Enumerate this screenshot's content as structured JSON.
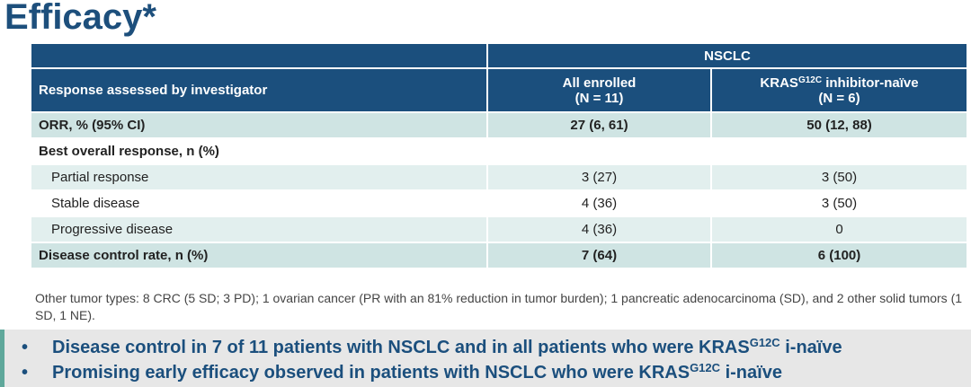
{
  "title": "Efficacy*",
  "table": {
    "group_header": "NSCLC",
    "header": {
      "label": "Response assessed by investigator",
      "columns": [
        {
          "title": "All enrolled",
          "n": "(N = 11)"
        },
        {
          "title": "KRAS",
          "title_sup": "G12C",
          "title_rest": " inhibitor-naïve",
          "n": "(N = 6)"
        }
      ]
    },
    "rows": [
      [
        "ORR, % (95% CI)",
        "27 (6, 61)",
        "50 (12, 88)"
      ],
      [
        "Best overall response, n (%)"
      ],
      [
        "Partial response",
        "3 (27)",
        "3 (50)"
      ],
      [
        "Stable disease",
        "4 (36)",
        "3 (50)"
      ],
      [
        "Progressive disease",
        "4 (36)",
        "0"
      ],
      [
        "Disease control rate, n (%)",
        "7 (64)",
        "6 (100)"
      ]
    ]
  },
  "footnote": "Other tumor types: 8 CRC (5 SD; 3 PD); 1 ovarian cancer (PR with an 81% reduction in tumor burden); 1 pancreatic adenocarcinoma (SD), and 2 other solid tumors (1 SD, 1 NE).",
  "bullets": [
    {
      "text": "Disease control in 7 of 11 patients with NSCLC and in all patients who were KRAS",
      "sup": "G12C",
      "rest": " i-naïve"
    },
    {
      "text": "Promising early efficacy observed in patients with NSCLC who were KRAS",
      "sup": "G12C",
      "rest": " i-naïve"
    }
  ]
}
